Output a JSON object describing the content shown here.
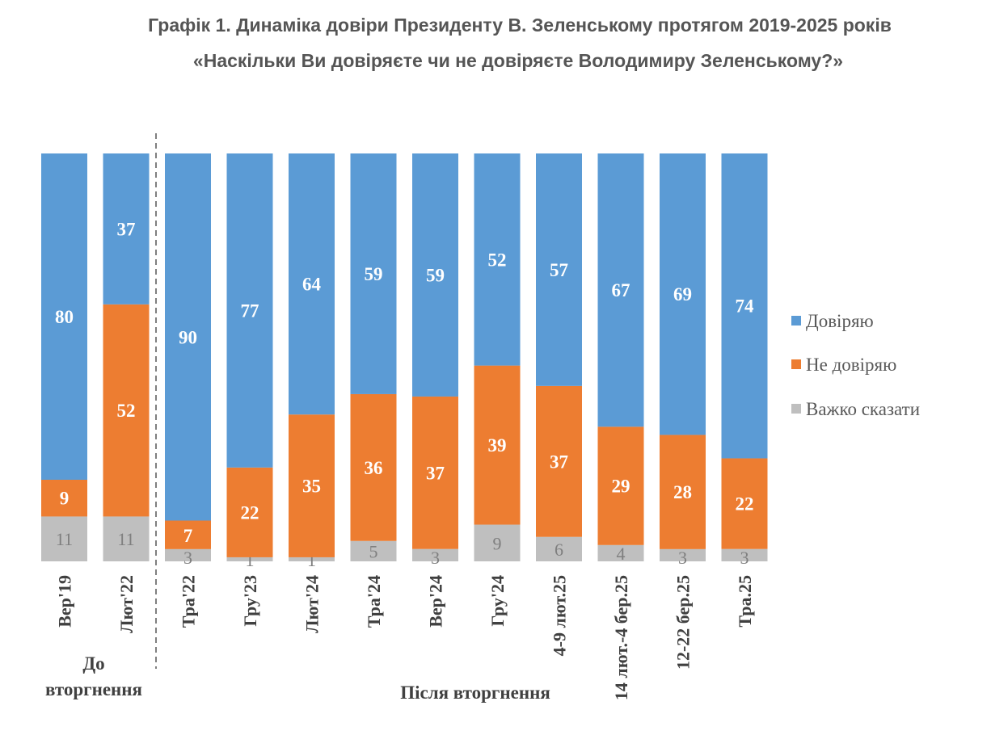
{
  "chart_data": {
    "type": "bar",
    "stacked": true,
    "title": "Графік 1. Динаміка довіри Президенту В. Зеленському протягом 2019-2025 років",
    "subtitle": "«Наскільки Ви довіряєте чи не довіряєте Володимиру Зеленському?»",
    "xlabel": "",
    "ylabel": "",
    "ylim": [
      0,
      100
    ],
    "grid": false,
    "legend_position": "right",
    "categories": [
      "Вер'19",
      "Лют'22",
      "Тра'22",
      "Гру'23",
      "Лют'24",
      "Тра'24",
      "Вер'24",
      "Гру'24",
      "4-9 лют.25",
      "14 лют.-4 бер.25",
      "12-22 бер.25",
      "Тра.25"
    ],
    "series": [
      {
        "name": "Довіряю",
        "color": "#5B9BD5",
        "values": [
          80,
          37,
          90,
          77,
          64,
          59,
          59,
          52,
          57,
          67,
          69,
          74
        ]
      },
      {
        "name": "Не довіряю",
        "color": "#ED7D31",
        "values": [
          9,
          52,
          7,
          22,
          35,
          36,
          37,
          39,
          37,
          29,
          28,
          22
        ]
      },
      {
        "name": "Важко сказати",
        "color": "#BFBFBF",
        "values": [
          11,
          11,
          3,
          1,
          1,
          5,
          3,
          9,
          6,
          4,
          3,
          3
        ]
      }
    ],
    "groups": [
      {
        "label": "До вторгнення",
        "label_lines": [
          "До",
          "вторгнення"
        ],
        "categories": [
          "Вер'19",
          "Лют'22"
        ]
      },
      {
        "label": "Після вторгнення",
        "categories": [
          "Тра'22",
          "Гру'23",
          "Лют'24",
          "Тра'24",
          "Вер'24",
          "Гру'24",
          "4-9 лют.25",
          "14 лют.-4 бер.25",
          "12-22 бер.25",
          "Тра.25"
        ]
      }
    ]
  }
}
